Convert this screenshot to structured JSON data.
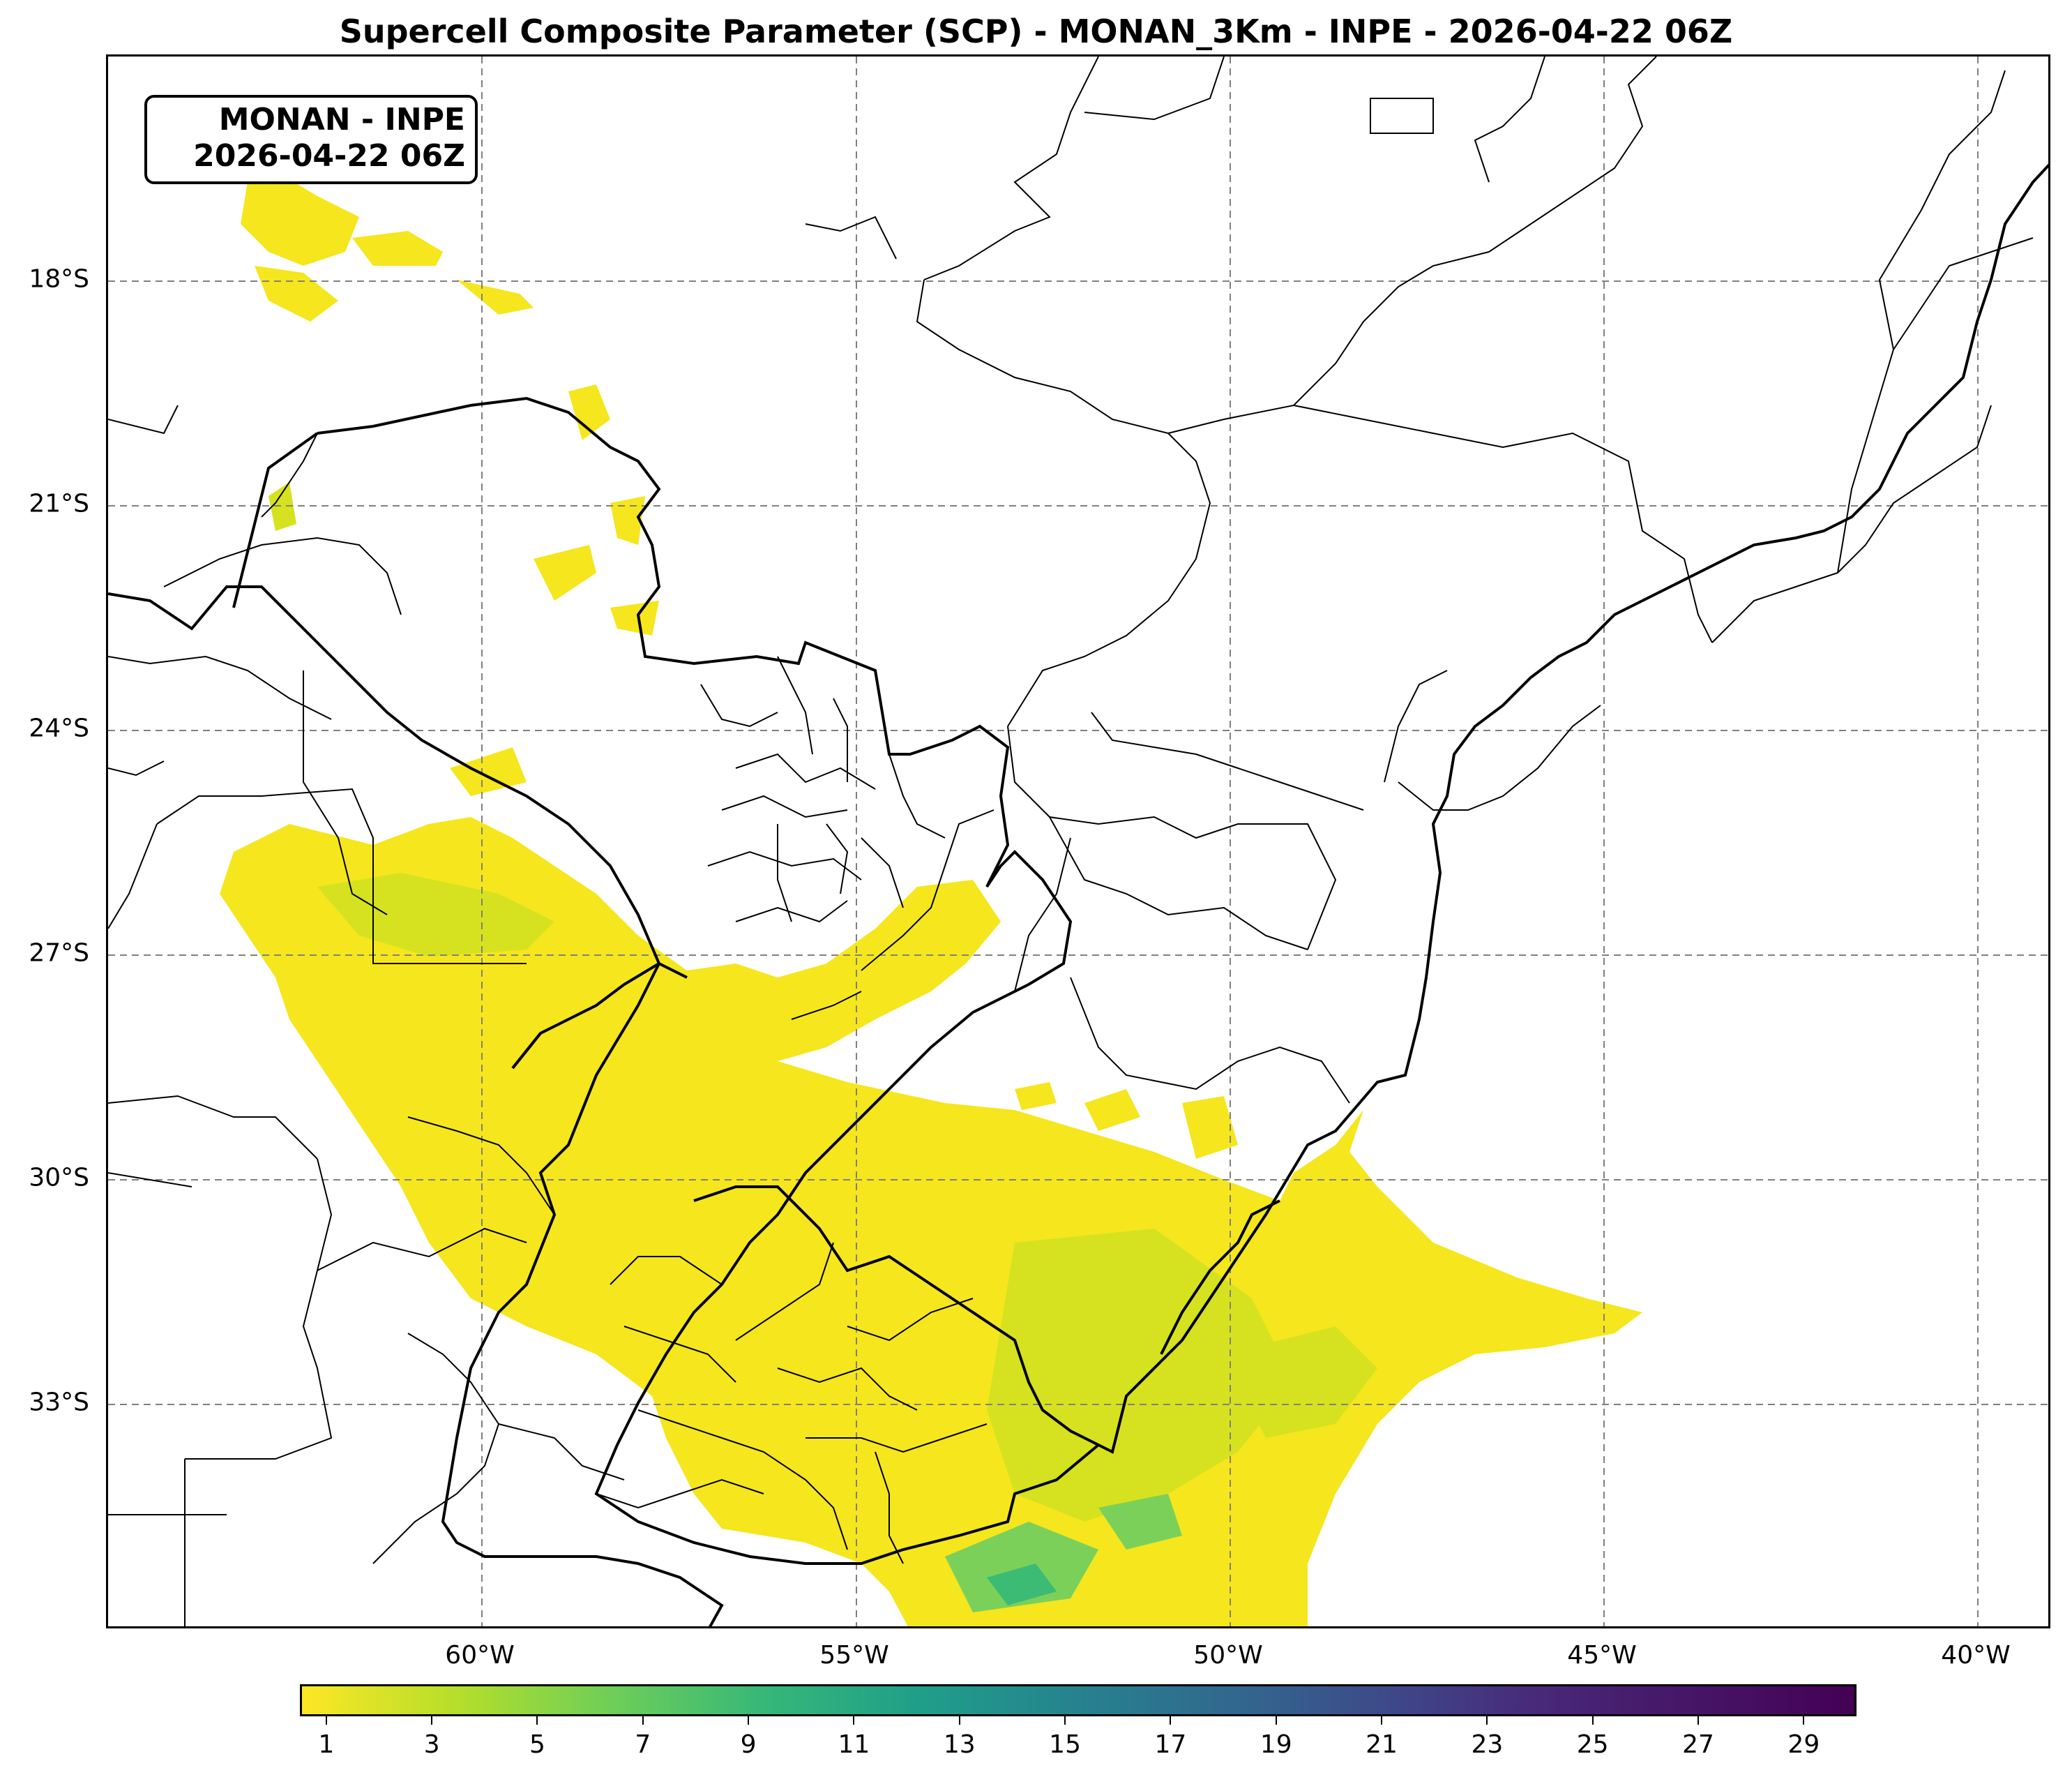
{
  "title": "Supercell Composite Parameter (SCP) - MONAN_3Km - INPE - 2026-04-22 06Z",
  "info_box": {
    "line1": "MONAN - INPE",
    "line2": "2026-04-22 06Z"
  },
  "map": {
    "lon_range": [
      -65,
      -39
    ],
    "lat_range": [
      -36,
      -15
    ],
    "lat_ticks": [
      {
        "value": -18,
        "label": "18°S"
      },
      {
        "value": -21,
        "label": "21°S"
      },
      {
        "value": -24,
        "label": "24°S"
      },
      {
        "value": -27,
        "label": "27°S"
      },
      {
        "value": -30,
        "label": "30°S"
      },
      {
        "value": -33,
        "label": "33°S"
      }
    ],
    "lon_ticks": [
      {
        "value": -60,
        "label": "60°W"
      },
      {
        "value": -55,
        "label": "55°W"
      },
      {
        "value": -50,
        "label": "50°W"
      },
      {
        "value": -45,
        "label": "45°W"
      },
      {
        "value": -40,
        "label": "40°W"
      }
    ],
    "grid": true,
    "colors": {
      "low": "#f5e61e",
      "mid": "#cfe11f",
      "high": "#3cbb75",
      "line": "#000000",
      "grid": "#808080"
    }
  },
  "colorbar": {
    "min": 0.5,
    "max": 30,
    "colormap": "viridis_r",
    "ticks": [
      "1",
      "3",
      "5",
      "7",
      "9",
      "11",
      "13",
      "15",
      "17",
      "19",
      "21",
      "23",
      "25",
      "27",
      "29"
    ]
  }
}
